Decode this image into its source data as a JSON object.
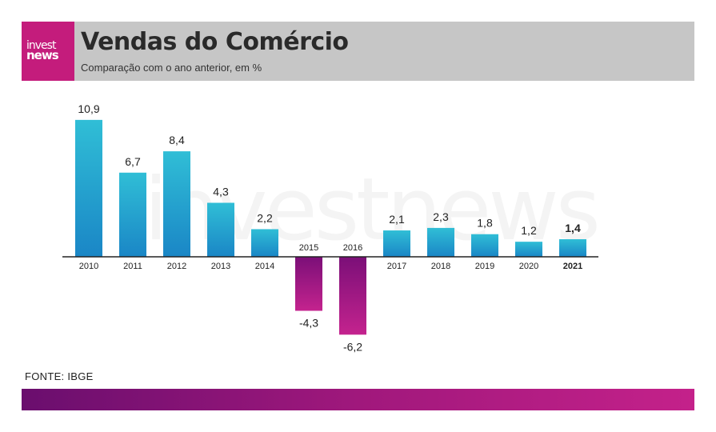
{
  "header": {
    "logo_line1": "invest",
    "logo_line2": "news",
    "title": "Vendas do Comércio",
    "subtitle": "Comparação com o ano anterior, em %"
  },
  "watermark": "investnews",
  "source": "FONTE: IBGE",
  "colors": {
    "positive_top": "#30bed6",
    "positive_bottom": "#1a86c6",
    "negative_top": "#7b0f78",
    "negative_bottom": "#c4238e",
    "header_bg": "#c6c6c6",
    "brand": "#c41c7c"
  },
  "chart_data": {
    "type": "bar",
    "title": "Vendas do Comércio",
    "subtitle": "Comparação com o ano anterior, em %",
    "categories": [
      "2010",
      "2011",
      "2012",
      "2013",
      "2014",
      "2015",
      "2016",
      "2017",
      "2018",
      "2019",
      "2020",
      "2021"
    ],
    "values": [
      10.9,
      6.7,
      8.4,
      4.3,
      2.2,
      -4.3,
      -6.2,
      2.1,
      2.3,
      1.8,
      1.2,
      1.4
    ],
    "labels": [
      "10,9",
      "6,7",
      "8,4",
      "4,3",
      "2,2",
      "-4,3",
      "-6,2",
      "2,1",
      "2,3",
      "1,8",
      "1,2",
      "1,4"
    ],
    "highlight": "2021",
    "xlabel": "",
    "ylabel": "%",
    "ylim": [
      -6.2,
      10.9
    ],
    "grid": false
  }
}
